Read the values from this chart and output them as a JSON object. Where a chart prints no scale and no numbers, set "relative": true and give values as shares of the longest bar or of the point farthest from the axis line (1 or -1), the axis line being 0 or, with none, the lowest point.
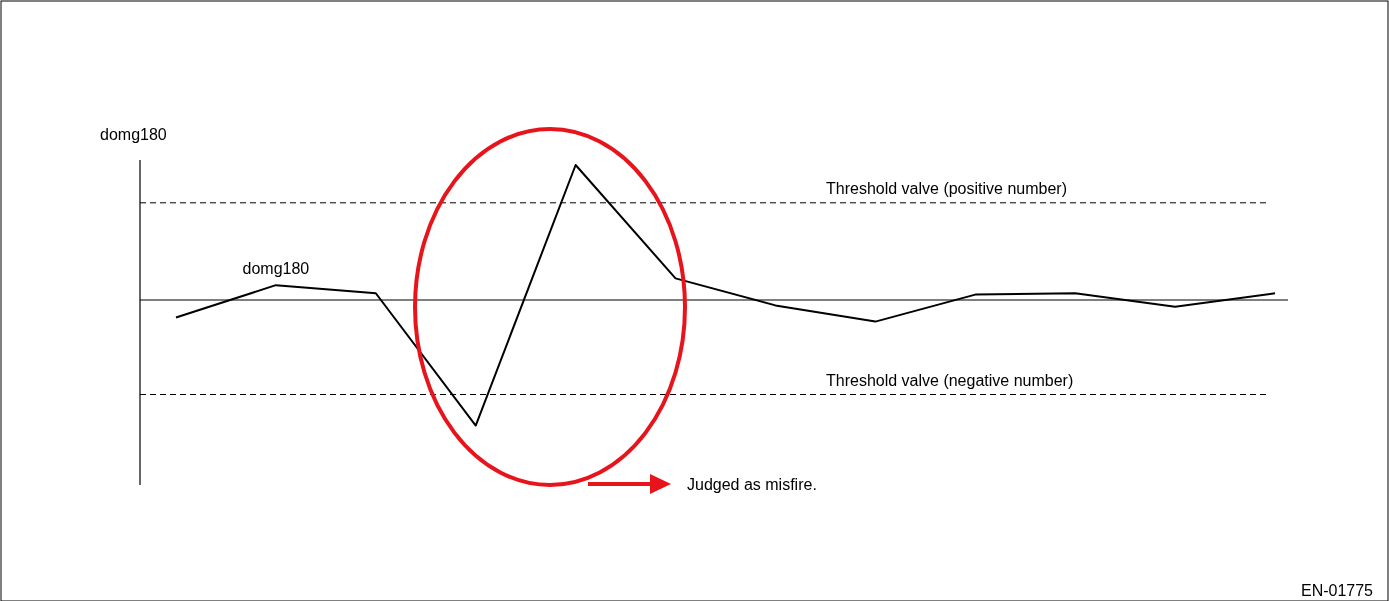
{
  "chart_data": {
    "type": "line",
    "ylabel": "domg180",
    "relative": true,
    "categories": [
      null,
      null,
      null,
      null,
      null,
      null,
      null,
      null,
      null,
      null,
      null,
      null
    ],
    "series": [
      {
        "name": "domg180",
        "color": "#000000",
        "values": [
          -0.13,
          0.11,
          0.05,
          -0.93,
          1,
          0.16,
          -0.04,
          -0.16,
          0.04,
          0.05,
          -0.05,
          0.05
        ]
      }
    ],
    "ref_lines": [
      {
        "axis": "y",
        "value": 0.72,
        "label": "Threshold valve (positive number)",
        "line_style": "dashed"
      },
      {
        "axis": "y",
        "value": -0.7,
        "label": "Threshold valve (negative number)",
        "line_style": "dashed"
      }
    ],
    "annotations": [
      "Judged as misfire.",
      "EN-01775"
    ]
  }
}
